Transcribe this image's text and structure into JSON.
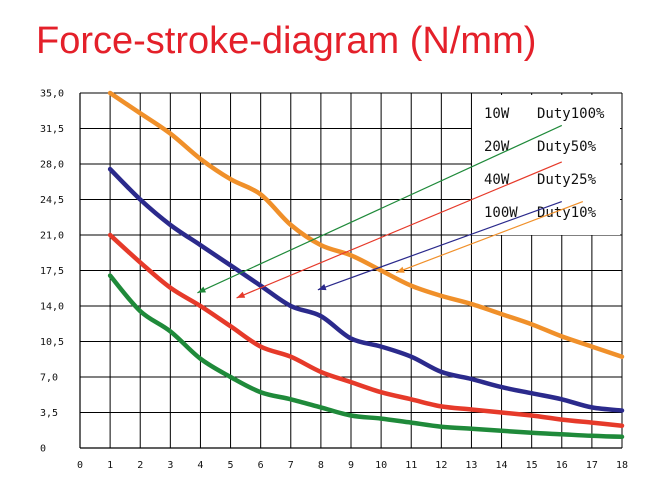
{
  "title": "Force-stroke-diagram (N/mm)",
  "colors": {
    "orange": "#f0902a",
    "navy": "#2b2a8c",
    "red": "#e63a2a",
    "green": "#1f8a3a",
    "grid": "#000000"
  },
  "chart_data": {
    "type": "line",
    "title": "Force-stroke-diagram (N/mm)",
    "xlabel": "",
    "ylabel": "",
    "xlim": [
      0,
      18
    ],
    "ylim": [
      0,
      35
    ],
    "grid": true,
    "legend_position": "top-right",
    "x_ticks": [
      "0",
      "1",
      "2",
      "3",
      "4",
      "5",
      "6",
      "7",
      "8",
      "9",
      "10",
      "11",
      "12",
      "13",
      "14",
      "15",
      "16",
      "17",
      "18"
    ],
    "y_ticks": [
      "0",
      "3,5",
      "7,0",
      "10,5",
      "14,0",
      "17,5",
      "21,0",
      "24,5",
      "28,0",
      "31,5",
      "35,0"
    ],
    "legend": [
      {
        "power": "10W",
        "duty": "Duty100%"
      },
      {
        "power": "20W",
        "duty": "Duty50%"
      },
      {
        "power": "40W",
        "duty": "Duty25%"
      },
      {
        "power": "100W",
        "duty": "Duty10%"
      }
    ],
    "series": [
      {
        "color": "#f0902a",
        "x": [
          1,
          2,
          3,
          4,
          5,
          6,
          7,
          8,
          9,
          10,
          11,
          12,
          13,
          14,
          15,
          16,
          17,
          18
        ],
        "y": [
          35,
          33,
          31,
          28.5,
          26.5,
          25,
          22,
          20,
          19,
          17.5,
          16,
          15,
          14.2,
          13.2,
          12.2,
          11,
          10,
          9
        ]
      },
      {
        "color": "#2b2a8c",
        "x": [
          1,
          2,
          3,
          4,
          5,
          6,
          7,
          8,
          9,
          10,
          11,
          12,
          13,
          14,
          15,
          16,
          17,
          18
        ],
        "y": [
          27.5,
          24.5,
          22,
          20,
          18,
          16,
          14,
          13,
          10.8,
          10,
          9,
          7.5,
          6.8,
          6,
          5.4,
          4.8,
          4,
          3.7
        ]
      },
      {
        "color": "#e63a2a",
        "x": [
          1,
          2,
          3,
          4,
          5,
          6,
          7,
          8,
          9,
          10,
          11,
          12,
          13,
          14,
          15,
          16,
          17,
          18
        ],
        "y": [
          21,
          18.3,
          15.8,
          14,
          12,
          10,
          9,
          7.5,
          6.5,
          5.5,
          4.8,
          4.1,
          3.8,
          3.5,
          3.2,
          2.8,
          2.5,
          2.2
        ]
      },
      {
        "color": "#1f8a3a",
        "x": [
          1,
          2,
          3,
          4,
          5,
          6,
          7,
          8,
          9,
          10,
          11,
          12,
          13,
          14,
          15,
          16,
          17,
          18
        ],
        "y": [
          17,
          13.5,
          11.5,
          8.8,
          7,
          5.5,
          4.8,
          4,
          3.2,
          2.9,
          2.5,
          2.1,
          1.9,
          1.7,
          1.5,
          1.35,
          1.2,
          1.1
        ]
      }
    ],
    "annotations": [
      {
        "target_series": 0,
        "from": [
          16.7,
          24.3
        ],
        "to": [
          10.5,
          17.3
        ]
      },
      {
        "target_series": 1,
        "from": [
          16.0,
          24.3
        ],
        "to": [
          7.9,
          15.6
        ]
      },
      {
        "target_series": 2,
        "from": [
          16.0,
          28.2
        ],
        "to": [
          5.2,
          14.8
        ]
      },
      {
        "target_series": 3,
        "from": [
          16.0,
          31.8
        ],
        "to": [
          3.9,
          15.3
        ]
      }
    ]
  }
}
